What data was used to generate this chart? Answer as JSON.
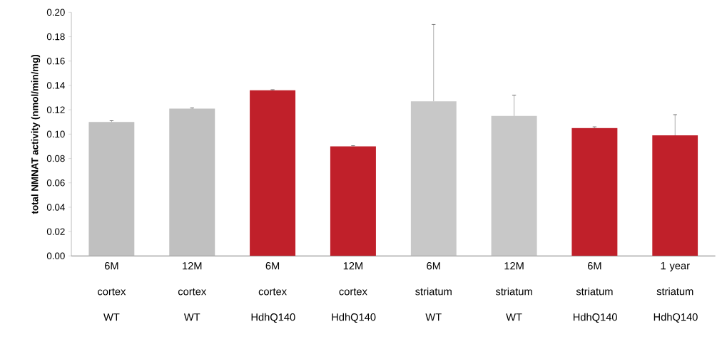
{
  "chart_data": {
    "type": "bar",
    "ylabel": "total NMNAT activity (nmol/min/mg)",
    "categories": [
      "6M cortex WT",
      "12M cortex WT",
      "6M cortex HdhQ140",
      "12M cortex HdhQ140",
      "6M striatum WT",
      "12M striatum WT",
      "6M striatum HdhQ140",
      "1 year striatum HdhQ140"
    ],
    "values": [
      0.11,
      0.121,
      0.136,
      0.09,
      0.127,
      0.115,
      0.105,
      0.099
    ],
    "colors": [
      "#c0c0c0",
      "#c0c0c0",
      "#c0202a",
      "#c0202a",
      "#c8c8c8",
      "#c8c8c8",
      "#c0202a",
      "#c0202a"
    ],
    "errors": [
      [
        0.11,
        0.111
      ],
      [
        0.121,
        0.1215
      ],
      [
        0.136,
        0.1365
      ],
      [
        0.09,
        0.0905
      ],
      [
        0.127,
        0.19
      ],
      [
        0.115,
        0.132
      ],
      [
        0.105,
        0.106
      ],
      [
        0.099,
        0.116
      ]
    ],
    "ylim": [
      0,
      0.2
    ],
    "yticks": [
      {
        "value": 0,
        "label": "0.00"
      },
      {
        "value": 0.02,
        "label": "0.02"
      },
      {
        "value": 0.04,
        "label": "0.04"
      },
      {
        "value": 0.06,
        "label": "0.06"
      },
      {
        "value": 0.08,
        "label": "0.08"
      },
      {
        "value": 0.1,
        "label": "0.10"
      },
      {
        "value": 0.12,
        "label": "0.12"
      },
      {
        "value": 0.14,
        "label": "0.14"
      },
      {
        "value": 0.16,
        "label": "0.16"
      },
      {
        "value": 0.18,
        "label": "0.18"
      },
      {
        "value": 0.2,
        "label": "0.20"
      }
    ],
    "grid": false
  }
}
